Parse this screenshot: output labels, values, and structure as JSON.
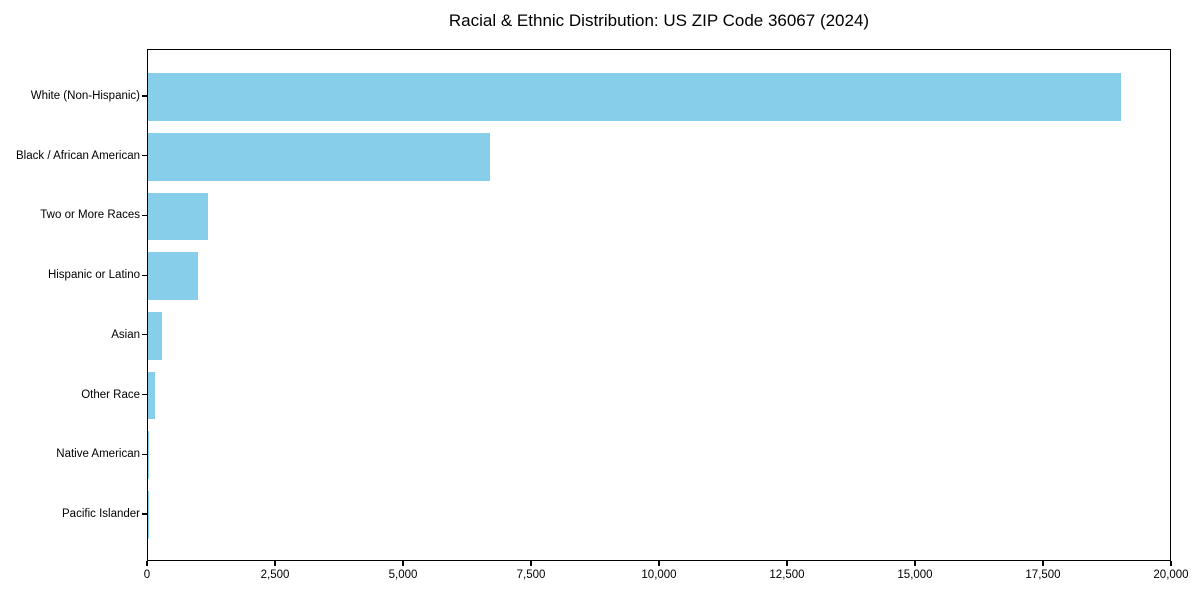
{
  "chart_data": {
    "type": "bar",
    "orientation": "horizontal",
    "title": "Racial & Ethnic Distribution: US ZIP Code 36067 (2024)",
    "categories": [
      "White (Non-Hispanic)",
      "Black / African American",
      "Two or More Races",
      "Hispanic or Latino",
      "Asian",
      "Other Race",
      "Native American",
      "Pacific Islander"
    ],
    "values": [
      19050,
      6700,
      1180,
      980,
      270,
      140,
      25,
      5
    ],
    "xlabel": "",
    "ylabel": "",
    "xlim": [
      0,
      20000
    ],
    "xticks": [
      0,
      2500,
      5000,
      7500,
      10000,
      12500,
      15000,
      17500,
      20000
    ],
    "xtick_labels": [
      "0",
      "2,500",
      "5,000",
      "7,500",
      "10,000",
      "12,500",
      "15,000",
      "17,500",
      "20,000"
    ],
    "bar_color": "#87CEEB",
    "axis_color": "#000000",
    "background_color": "#ffffff",
    "grid": false,
    "legend": "none"
  }
}
